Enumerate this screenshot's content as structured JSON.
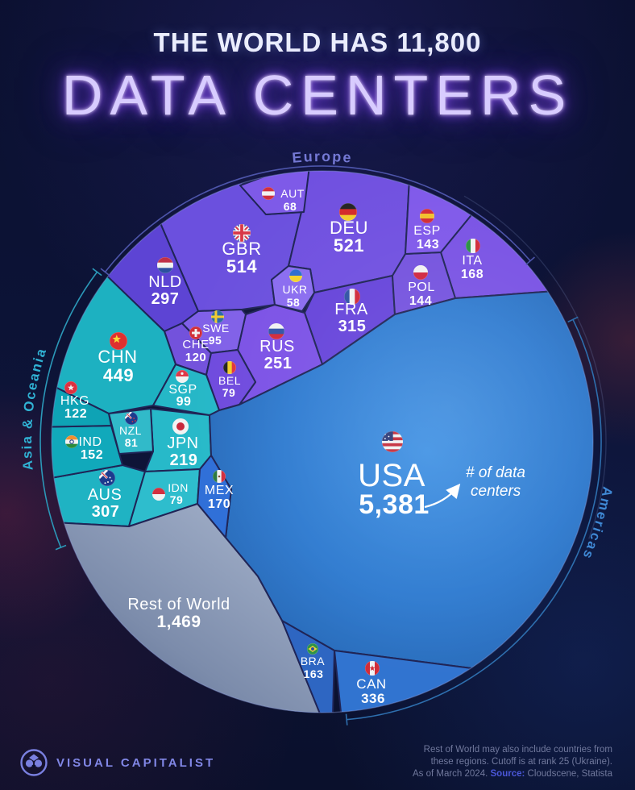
{
  "title": {
    "line1": "THE WORLD HAS 11,800",
    "line2": "DATA CENTERS"
  },
  "annotation": {
    "line1": "# of data",
    "line2": "centers"
  },
  "footer": {
    "brand": "VISUAL CAPITALIST",
    "note_line1": "Rest of World may also include countries from",
    "note_line2": "these regions. Cutoff is at rank 25 (Ukraine).",
    "note_line3_pre": "As of March 2024. ",
    "source_label": "Source:",
    "source_value": " Cloudscene, Statista"
  },
  "chart_data": {
    "type": "voronoi",
    "title": "The World Has 11,800 Data Centers",
    "total": 11800,
    "unit": "data centers",
    "legend_position": "around-circle",
    "groups": [
      {
        "name": "Europe",
        "label_color": "#7478d4",
        "bracket_color": "#4d55aa",
        "countries": [
          {
            "code": "GBR",
            "value": 514,
            "display": "514"
          },
          {
            "code": "DEU",
            "value": 521,
            "display": "521"
          },
          {
            "code": "NLD",
            "value": 297,
            "display": "297"
          },
          {
            "code": "FRA",
            "value": 315,
            "display": "315"
          },
          {
            "code": "RUS",
            "value": 251,
            "display": "251"
          },
          {
            "code": "ITA",
            "value": 168,
            "display": "168"
          },
          {
            "code": "POL",
            "value": 144,
            "display": "144"
          },
          {
            "code": "ESP",
            "value": 143,
            "display": "143"
          },
          {
            "code": "CHE",
            "value": 120,
            "display": "120"
          },
          {
            "code": "SWE",
            "value": 95,
            "display": "95"
          },
          {
            "code": "BEL",
            "value": 79,
            "display": "79"
          },
          {
            "code": "AUT",
            "value": 68,
            "display": "68"
          },
          {
            "code": "UKR",
            "value": 58,
            "display": "58"
          }
        ]
      },
      {
        "name": "Asia & Oceania",
        "label_color": "#30b2d4",
        "bracket_color": "#2b98b8",
        "countries": [
          {
            "code": "CHN",
            "value": 449,
            "display": "449"
          },
          {
            "code": "AUS",
            "value": 307,
            "display": "307"
          },
          {
            "code": "JPN",
            "value": 219,
            "display": "219"
          },
          {
            "code": "IND",
            "value": 152,
            "display": "152"
          },
          {
            "code": "HKG",
            "value": 122,
            "display": "122"
          },
          {
            "code": "SGP",
            "value": 99,
            "display": "99"
          },
          {
            "code": "NZL",
            "value": 81,
            "display": "81"
          },
          {
            "code": "IDN",
            "value": 79,
            "display": "79"
          }
        ]
      },
      {
        "name": "Americas",
        "label_color": "#3f88d4",
        "bracket_color": "#2e6fae",
        "countries": [
          {
            "code": "USA",
            "value": 5381,
            "display": "5,381"
          },
          {
            "code": "CAN",
            "value": 336,
            "display": "336"
          },
          {
            "code": "MEX",
            "value": 170,
            "display": "170"
          },
          {
            "code": "BRA",
            "value": 163,
            "display": "163"
          }
        ]
      },
      {
        "name": "Rest of World",
        "value": 1469,
        "display": "1,469"
      }
    ]
  }
}
